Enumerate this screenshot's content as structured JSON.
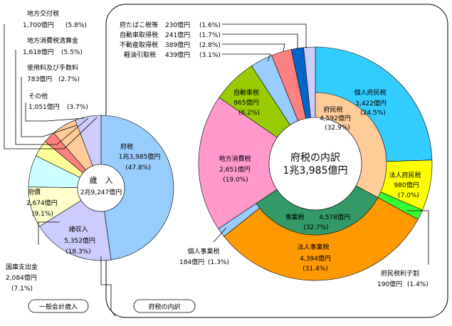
{
  "chart_data": [
    {
      "type": "pie",
      "title": "一般会計歳入",
      "center_line1": "歳　入",
      "center_line2": "2兆9,247億円",
      "slices": [
        {
          "name": "府税",
          "amount": "1兆3,985億円",
          "pct_label": "(47.8%)",
          "value": 47.8,
          "color": "#99ccff"
        },
        {
          "name": "諸収入",
          "amount": "5,352億円",
          "pct_label": "(18.3%)",
          "value": 18.3,
          "color": "#ccccff"
        },
        {
          "name": "府債",
          "amount": "2,674億円",
          "pct_label": "(9.1%)",
          "value": 9.1,
          "color": "#ffffcc"
        },
        {
          "name": "国庫支出金",
          "amount": "2,084億円",
          "pct_label": "(7.1%)",
          "value": 7.1,
          "color": "#ccffff"
        },
        {
          "name": "その他",
          "amount": "1,051億円",
          "pct_label": "(3.7%)",
          "value": 3.7,
          "color": "#ffff99"
        },
        {
          "name": "使用料及び手数料",
          "amount": "783億円",
          "pct_label": "(2.7%)",
          "value": 2.7,
          "color": "#ff8080"
        },
        {
          "name": "地方消費税清算金",
          "amount": "1,618億円",
          "pct_label": "(5.5%)",
          "value": 5.5,
          "color": "#ffcc99"
        },
        {
          "name": "地方交付税",
          "amount": "1,700億円",
          "pct_label": "(5.8%)",
          "value": 5.8,
          "color": "#ccccff"
        }
      ]
    },
    {
      "type": "pie",
      "title": "府税の内訳",
      "center_line1": "府税の内訳",
      "center_line2": "1兆3,985億円",
      "outer_slices": [
        {
          "name": "個人府民税",
          "amount": "3,422億円",
          "pct_label": "(24.5%)",
          "value": 24.5,
          "color": "#33ccff"
        },
        {
          "name": "法人府民税",
          "amount": "980億円",
          "pct_label": "(7.0%)",
          "value": 7.0,
          "color": "#ffff00"
        },
        {
          "name": "府民税利子割",
          "amount": "190億円",
          "pct_label": "(1.4%)",
          "value": 1.4,
          "color": "#33ff33"
        },
        {
          "name": "法人事業税",
          "amount": "4,394億円",
          "pct_label": "(31.4%)",
          "value": 31.4,
          "color": "#ff9900"
        },
        {
          "name": "個人事業税",
          "amount": "184億円",
          "pct_label": "(1.3%)",
          "value": 1.3,
          "color": "#99ccff"
        },
        {
          "name": "地方消費税",
          "amount": "2,651億円",
          "pct_label": "(19.0%)",
          "value": 19.0,
          "color": "#ff99cc"
        },
        {
          "name": "自動車税",
          "amount": "865億円",
          "pct_label": "(6.2%)",
          "value": 6.2,
          "color": "#99cc00"
        },
        {
          "name": "軽油引取税",
          "amount": "439億円",
          "pct_label": "(3.1%)",
          "value": 3.1,
          "color": "#99ccff"
        },
        {
          "name": "不動産取得税",
          "amount": "389億円",
          "pct_label": "(2.8%)",
          "value": 2.8,
          "color": "#ff8080"
        },
        {
          "name": "自動車取得税",
          "amount": "241億円",
          "pct_label": "(1.7%)",
          "value": 1.7,
          "color": "#0066cc"
        },
        {
          "name": "府たばこ税等",
          "amount": "230億円",
          "pct_label": "(1.6%)",
          "value": 1.6,
          "color": "#ccccff"
        }
      ],
      "inner_slices": [
        {
          "name": "府民税",
          "amount": "4,592億円",
          "pct_label": "(32.9%)",
          "value": 32.9,
          "color": "#ffcc99"
        },
        {
          "name": "事業税",
          "amount": "4,578億円",
          "pct_label": "(32.7%)",
          "value": 32.7,
          "color": "#339966"
        }
      ]
    }
  ],
  "captions": {
    "left": "一般会計歳入",
    "right": "府税の内訳"
  }
}
